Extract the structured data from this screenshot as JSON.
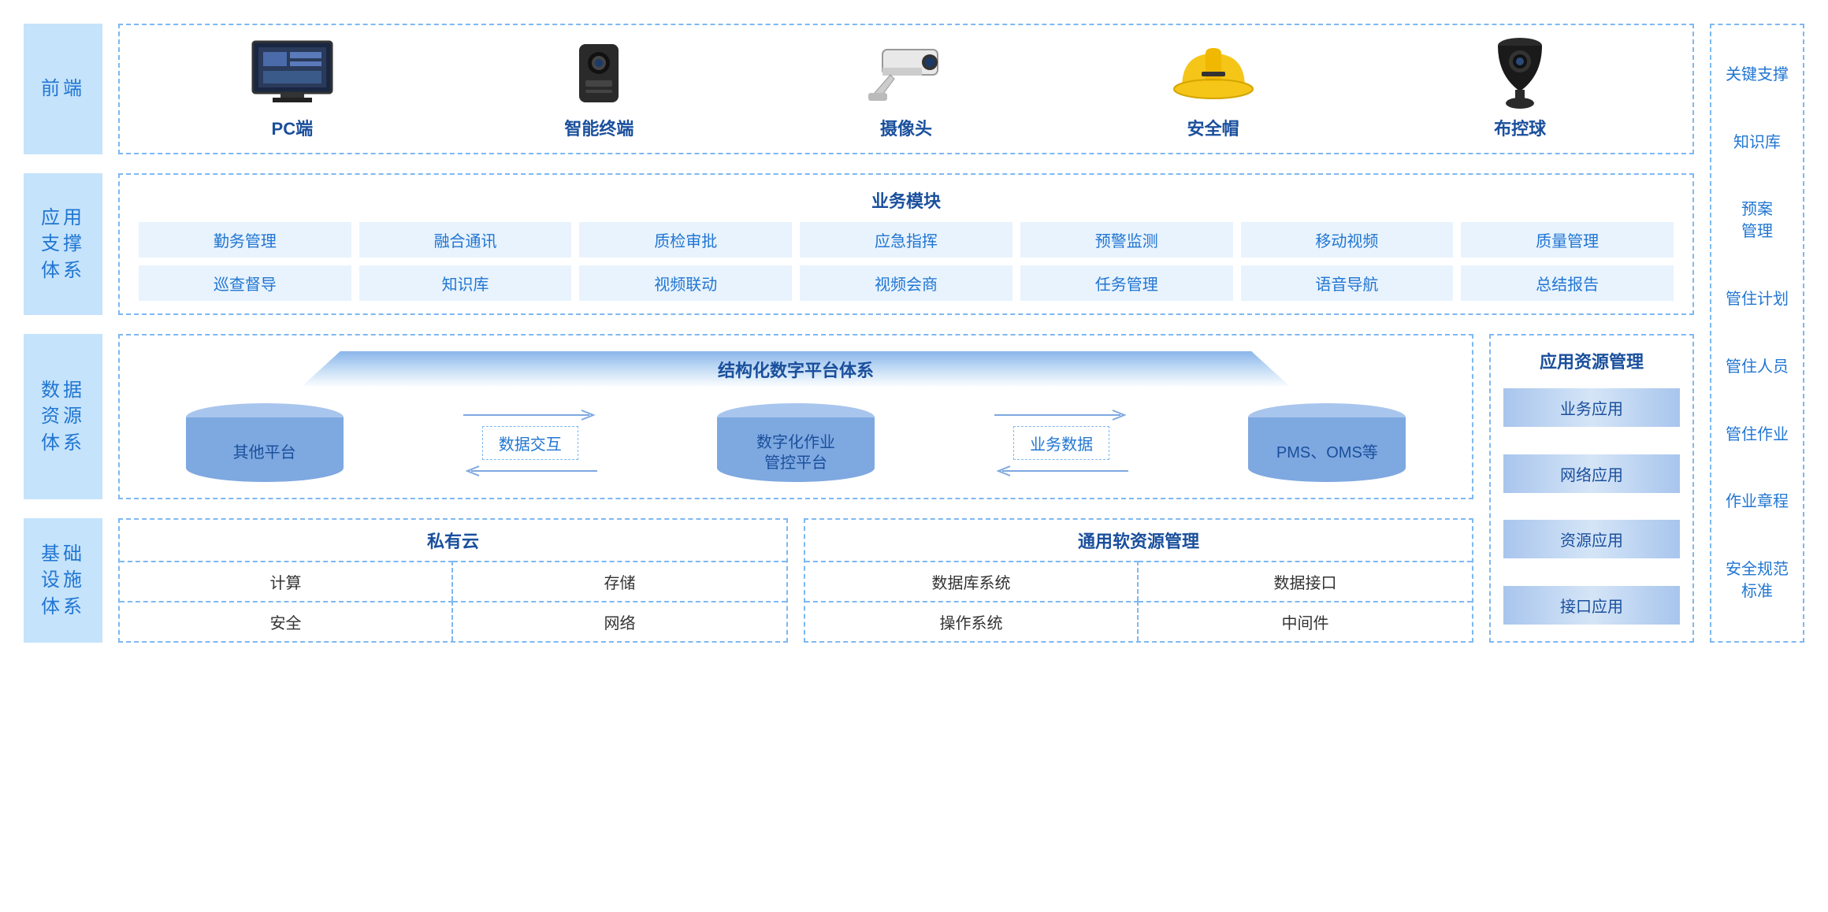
{
  "colors": {
    "label_bg": "#c5e3fb",
    "label_text": "#2176d2",
    "border": "#7eb8f2",
    "heading": "#1a4f9c",
    "biz_cell_bg": "#e8f3fd",
    "cyl_top": "#a8c5ed",
    "cyl_body": "#7ea8e0",
    "gradient_light": "#d5e5f7"
  },
  "right_sidebar": [
    "关键支撑",
    "知识库",
    "预案\n管理",
    "管住计划",
    "管住人员",
    "管住作业",
    "作业章程",
    "安全规范\n标准"
  ],
  "row1": {
    "label": "前端",
    "items": [
      {
        "name": "PC端",
        "icon": "monitor"
      },
      {
        "name": "智能终端",
        "icon": "bodycam"
      },
      {
        "name": "摄像头",
        "icon": "camera"
      },
      {
        "name": "安全帽",
        "icon": "hardhat"
      },
      {
        "name": "布控球",
        "icon": "ptz"
      }
    ]
  },
  "row2": {
    "label": "应用\n支撑\n体系",
    "header": "业务模块",
    "cells": [
      "勤务管理",
      "融合通讯",
      "质检审批",
      "应急指挥",
      "预警监测",
      "移动视频",
      "质量管理",
      "巡查督导",
      "知识库",
      "视频联动",
      "视频会商",
      "任务管理",
      "语音导航",
      "总结报告"
    ]
  },
  "row3": {
    "label": "数据\n资源\n体系",
    "banner": "结构化数字平台体系",
    "cylinders": [
      "其他平台",
      "数字化作业\n管控平台",
      "PMS、OMS等"
    ],
    "arrows": [
      "数据交互",
      "业务数据"
    ],
    "right_title": "应用资源管理",
    "right_items": [
      "业务应用",
      "网络应用",
      "资源应用",
      "接口应用"
    ]
  },
  "row4": {
    "label": "基础\n设施\n体系",
    "boxes": [
      {
        "title": "私有云",
        "cells": [
          "计算",
          "存储",
          "安全",
          "网络"
        ]
      },
      {
        "title": "通用软资源管理",
        "cells": [
          "数据库系统",
          "数据接口",
          "操作系统",
          "中间件"
        ]
      }
    ]
  }
}
